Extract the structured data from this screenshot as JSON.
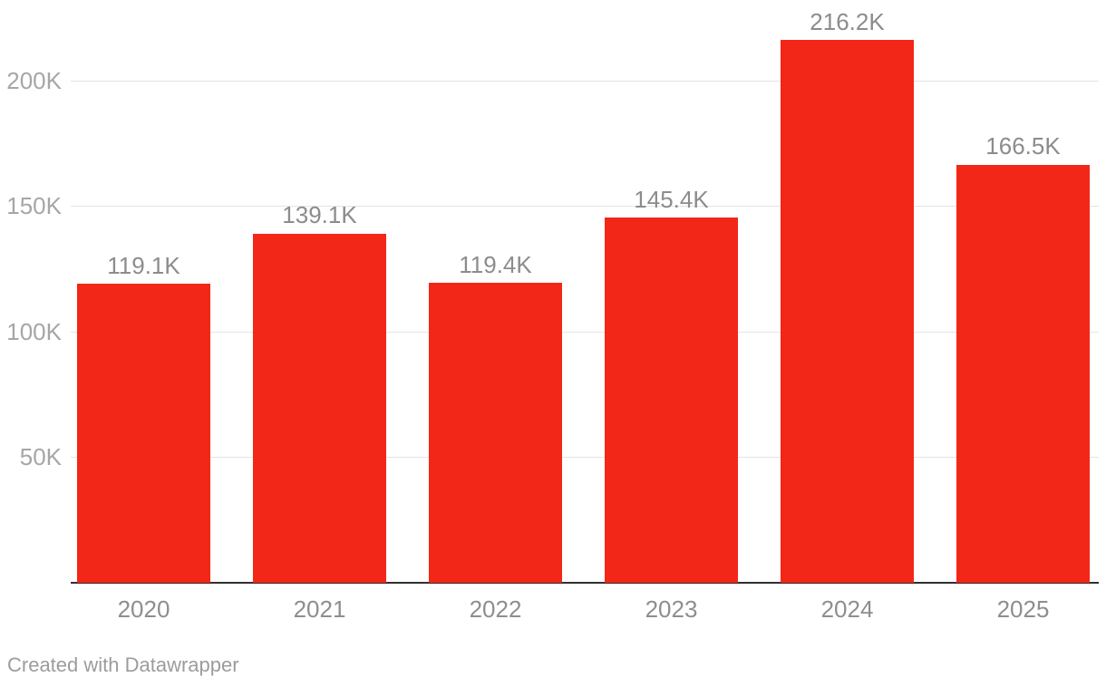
{
  "attribution": {
    "label": "Created with Datawrapper"
  },
  "colors": {
    "background": "#ffffff",
    "bar": "#f32717",
    "gridline": "#e4e4e4",
    "baseline": "#2f2f2f",
    "y_tick_text": "#a6a6a6",
    "value_label_text": "#8c8c8c",
    "x_tick_text": "#8e8e8e",
    "attribution_text": "#9c9c9c"
  },
  "chart_data": {
    "type": "bar",
    "title": "",
    "xlabel": "",
    "ylabel": "",
    "categories": [
      "2020",
      "2021",
      "2022",
      "2023",
      "2024",
      "2025"
    ],
    "values": [
      119100,
      139100,
      119400,
      145400,
      216200,
      166500
    ],
    "value_labels": [
      "119.1K",
      "139.1K",
      "119.4K",
      "145.4K",
      "216.2K",
      "166.5K"
    ],
    "yticks": [
      {
        "value": 50000,
        "label": "50K"
      },
      {
        "value": 100000,
        "label": "100K"
      },
      {
        "value": 150000,
        "label": "150K"
      },
      {
        "value": 200000,
        "label": "200K"
      }
    ],
    "ylim": [
      0,
      232000
    ],
    "grid": "horizontal",
    "legend": "none",
    "bar_color": "#f32717",
    "attribution": "Created with Datawrapper"
  }
}
